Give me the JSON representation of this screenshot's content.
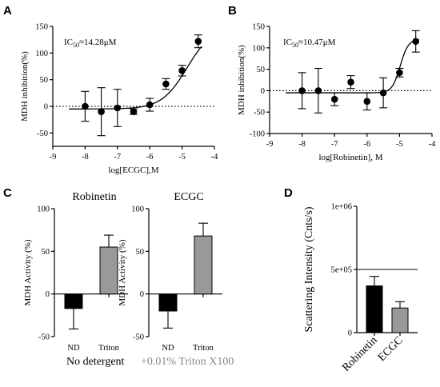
{
  "colors": {
    "black": "#000000",
    "gray": "#999999",
    "subtitle_gray": "#888888"
  },
  "panels": {
    "A": {
      "letter": "A",
      "ic50_prefix": "IC",
      "ic50_sub": "50",
      "ic50_value": "≈14.28μM"
    },
    "B": {
      "letter": "B",
      "ic50_prefix": "IC",
      "ic50_sub": "50",
      "ic50_value": "≈10.47μM"
    },
    "C": {
      "letter": "C",
      "left_title": "Robinetin",
      "right_title": "ECGC",
      "left_caption": "No detergent",
      "right_caption": "+0.01% Triton X100"
    },
    "D": {
      "letter": "D"
    }
  },
  "chart_data": [
    {
      "id": "A",
      "type": "scatter",
      "xlabel": "log[ECGC],M",
      "ylabel": "MDH inhibition(%)",
      "xlim": [
        -9,
        -4
      ],
      "ylim": [
        -75,
        150
      ],
      "xticks": [
        -9,
        -8,
        -7,
        -6,
        -5,
        -4
      ],
      "yticks": [
        -50,
        0,
        50,
        100,
        150
      ],
      "x": [
        -8.0,
        -7.5,
        -7.0,
        -6.5,
        -6.0,
        -5.5,
        -5.0,
        -4.5
      ],
      "y": [
        0,
        -10,
        -3,
        -10,
        3,
        42,
        67,
        122
      ],
      "err": [
        28,
        45,
        35,
        5,
        12,
        10,
        10,
        12
      ],
      "fit": {
        "bottom": -5,
        "top": 150,
        "logIC50": -4.845,
        "hill": 1.1
      },
      "reference_line_y": 0
    },
    {
      "id": "B",
      "type": "scatter",
      "xlabel": "log[Robinetin], M",
      "ylabel": "MDH inhibition(%)",
      "xlim": [
        -9,
        -4
      ],
      "ylim": [
        -100,
        150
      ],
      "xticks": [
        -9,
        -8,
        -7,
        -6,
        -5,
        -4
      ],
      "yticks": [
        -100,
        -50,
        0,
        50,
        100,
        150
      ],
      "x": [
        -8.0,
        -7.5,
        -7.0,
        -6.5,
        -6.0,
        -5.5,
        -5.0,
        -4.5
      ],
      "y": [
        0,
        0,
        -20,
        20,
        -25,
        -5,
        42,
        115
      ],
      "err": [
        42,
        52,
        15,
        15,
        20,
        35,
        10,
        25
      ],
      "fit": {
        "bottom": -5,
        "top": 120,
        "logIC50": -4.98,
        "hill": 3.5
      },
      "reference_line_y": 0
    },
    {
      "id": "C1",
      "type": "bar",
      "ylabel": "MDH Activity (%)",
      "ylim": [
        -50,
        100
      ],
      "yticks": [
        -50,
        0,
        50,
        100
      ],
      "categories": [
        "ND",
        "Triton"
      ],
      "values": [
        -17,
        55
      ],
      "err": [
        24,
        14
      ],
      "bar_colors": [
        "#000000",
        "#999999"
      ]
    },
    {
      "id": "C2",
      "type": "bar",
      "ylabel": "MDH Activity (%)",
      "ylim": [
        -50,
        100
      ],
      "yticks": [
        -50,
        0,
        50,
        100
      ],
      "categories": [
        "ND",
        "Triton"
      ],
      "values": [
        -20,
        68
      ],
      "err": [
        20,
        15
      ],
      "bar_colors": [
        "#000000",
        "#999999"
      ]
    },
    {
      "id": "D",
      "type": "bar",
      "ylabel": "Scattering Intensity (Cnts/s)",
      "ylim": [
        0,
        1000000
      ],
      "yticks": [
        0,
        500000,
        1000000
      ],
      "ytick_labels": [
        "0",
        "5e+05",
        "1e+06"
      ],
      "categories": [
        "Robinetin",
        "ECGC"
      ],
      "values": [
        370000,
        195000
      ],
      "err": [
        75000,
        50000
      ],
      "bar_colors": [
        "#000000",
        "#999999"
      ],
      "reference_line_y": 500000
    }
  ]
}
